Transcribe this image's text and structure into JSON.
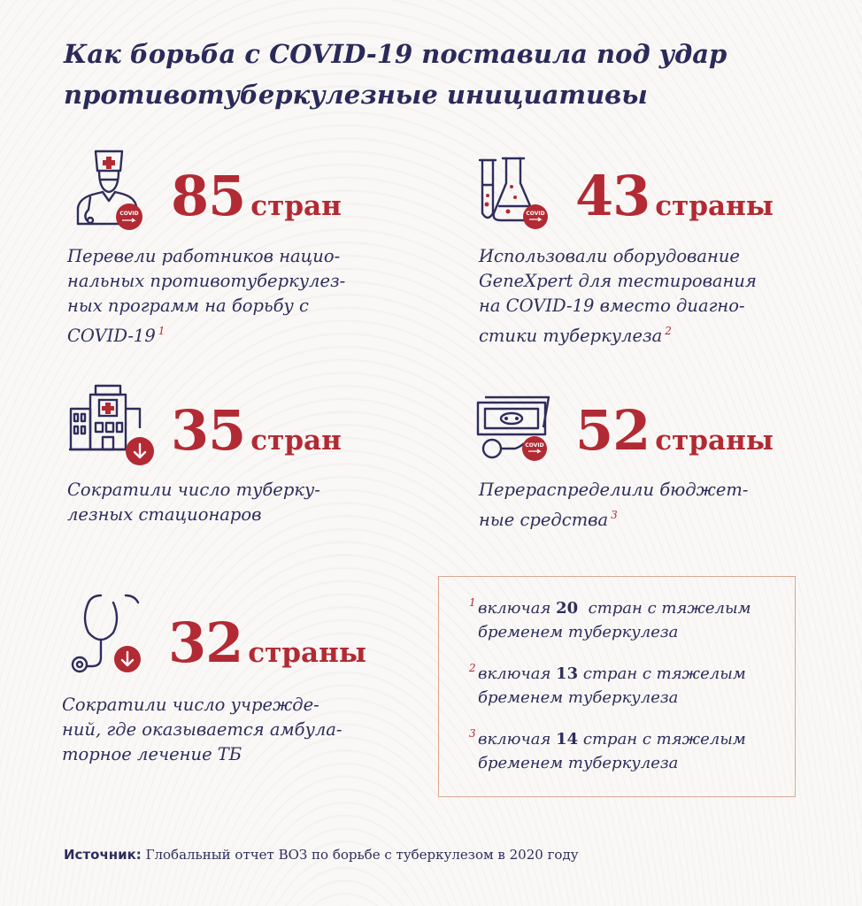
{
  "title": "Как борьба с COVID-19 поставила под удар противотуберкулезные инициативы",
  "colors": {
    "accent": "#b22a33",
    "text": "#2e2d5c",
    "border": "#d9a890"
  },
  "stats": [
    {
      "number": "85",
      "unit": "стран",
      "icon": "doctor-covid-icon",
      "lines": [
        "Перевели работников нацио-",
        "нальных противотуберкулез-",
        "ных программ на борьбу с",
        "COVID-19"
      ],
      "footnote": "1"
    },
    {
      "number": "43",
      "unit": "страны",
      "icon": "lab-flasks-covid-icon",
      "lines": [
        "Использовали оборудование",
        "GeneXpert для тестирования",
        "на COVID-19 вместо диагно-",
        "стики туберкулеза"
      ],
      "footnote": "2"
    },
    {
      "number": "35",
      "unit": "стран",
      "icon": "hospital-decrease-icon",
      "lines": [
        "Сократили число туберку-",
        "лезных стационаров"
      ],
      "footnote": ""
    },
    {
      "number": "52",
      "unit": "страны",
      "icon": "money-covid-icon",
      "lines": [
        "Перераспределили бюджет-",
        "ные средства"
      ],
      "footnote": "3"
    },
    {
      "number": "32",
      "unit": "страны",
      "icon": "stethoscope-decrease-icon",
      "lines": [
        "Сократили число учрежде-",
        "ний, где оказывается амбула-",
        "торное лечение ТБ"
      ],
      "footnote": ""
    }
  ],
  "covid_badge": "COVID",
  "notes": [
    {
      "mark": "1",
      "pre": "включая ",
      "bold": "20",
      "post": "  стран с тяжелым",
      "line2": "бременем туберкулеза"
    },
    {
      "mark": "2",
      "pre": "включая ",
      "bold": "13",
      "post": " стран с тяжелым",
      "line2": "бременем туберкулеза"
    },
    {
      "mark": "3",
      "pre": "включая ",
      "bold": "14",
      "post": " стран с тяжелым",
      "line2": "бременем туберкулеза"
    }
  ],
  "source": {
    "label": "Источник:",
    "text": " Глобальный отчет ВОЗ по борьбе с туберкулезом в 2020 году"
  }
}
